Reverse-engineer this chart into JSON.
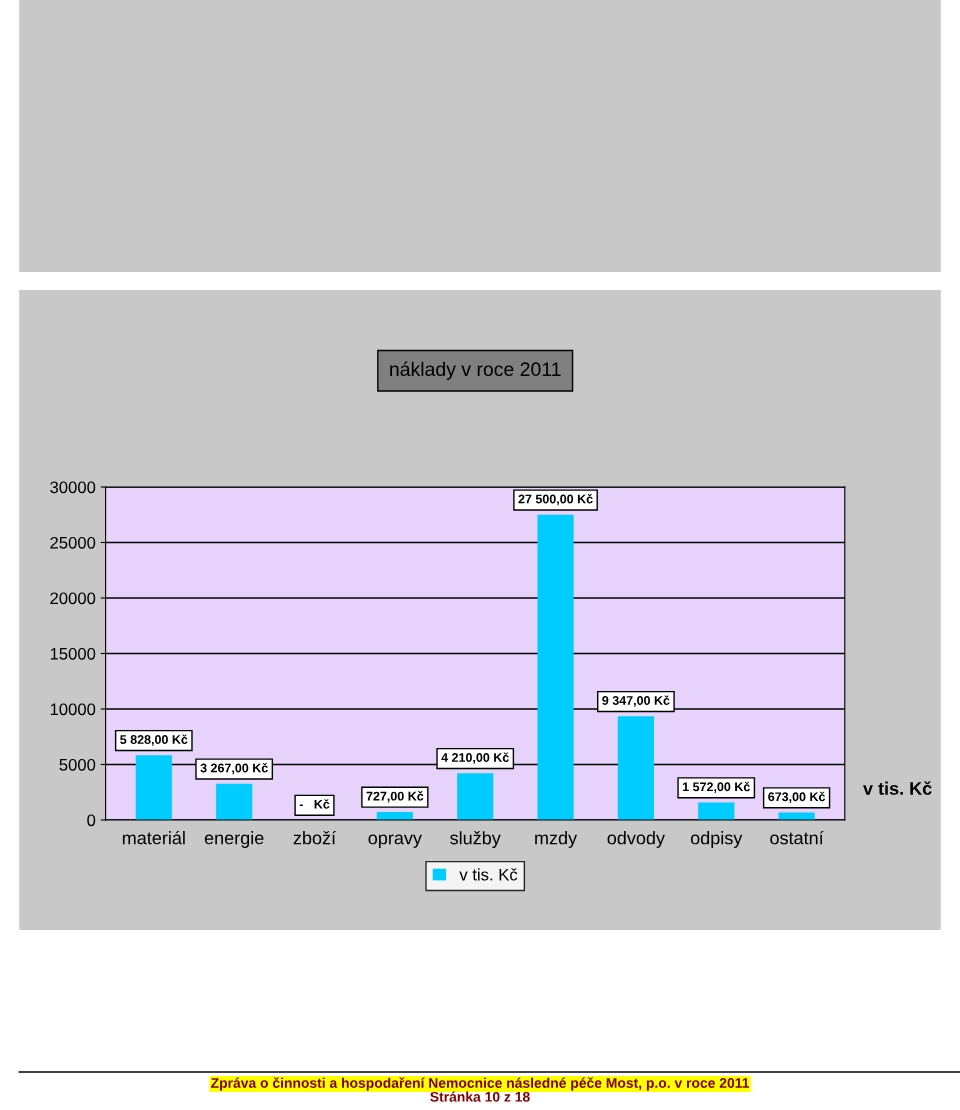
{
  "chart_data": {
    "type": "bar",
    "title": "náklady v roce 2011",
    "categories": [
      "materiál",
      "energie",
      "zboží",
      "opravy",
      "služby",
      "mzdy",
      "odvody",
      "odpisy",
      "ostatní"
    ],
    "series": [
      {
        "name": "v tis. Kč",
        "color": "#00ccff",
        "values": [
          5828,
          3267,
          0,
          727,
          4210,
          27500,
          9347,
          1572,
          673
        ],
        "value_labels": [
          "5 828,00 Kč",
          "3 267,00 Kč",
          "-   Kč",
          "727,00 Kč",
          "4 210,00 Kč",
          "27 500,00 Kč",
          "9 347,00 Kč",
          "1 572,00 Kč",
          "673,00 Kč"
        ]
      }
    ],
    "ylim": [
      0,
      30000
    ],
    "yticks": [
      0,
      5000,
      10000,
      15000,
      20000,
      25000,
      30000
    ],
    "grid": "y",
    "legend": "bottom",
    "annotations": [
      "v tis. Kč",
      "Zpráva o činnosti a hospodaření Nemocnice následné péče Most, p.o. v roce 2011",
      "Stránka 10 z 18"
    ]
  }
}
